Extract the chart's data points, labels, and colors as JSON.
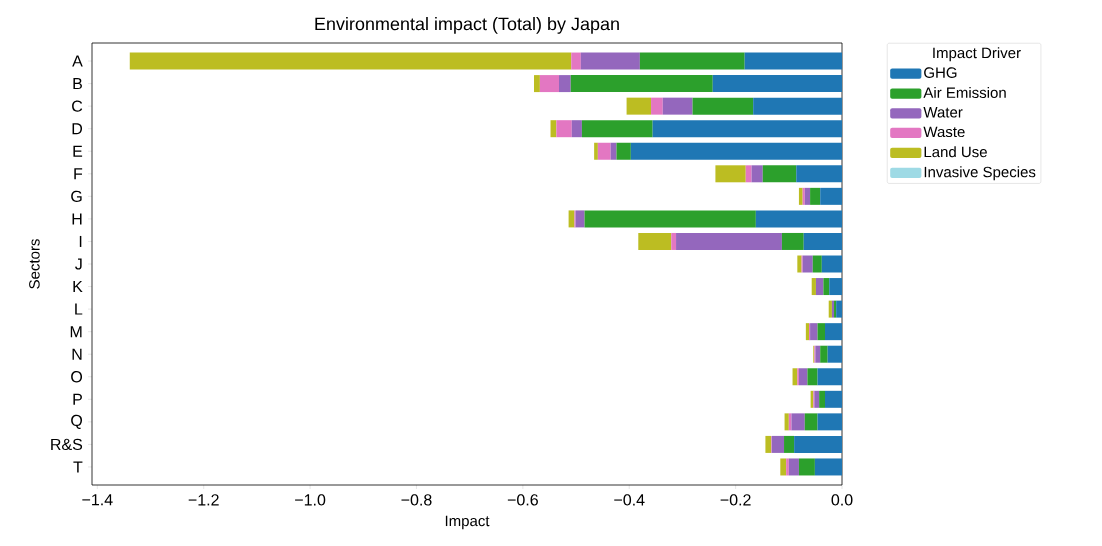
{
  "chart_data": {
    "type": "bar",
    "orientation": "horizontal",
    "stacked": true,
    "title": "Environmental impact (Total) by Japan",
    "xlabel": "Impact",
    "ylabel": "Sectors",
    "legend_title": "Impact Driver",
    "legend": "top right",
    "categories": [
      "A",
      "B",
      "C",
      "D",
      "E",
      "F",
      "G",
      "H",
      "I",
      "J",
      "K",
      "L",
      "M",
      "N",
      "O",
      "P",
      "Q",
      "R&S",
      "T"
    ],
    "xlim": [
      -1.41,
      0
    ],
    "xticks": [
      {
        "value": -1.4,
        "label": "−1.4"
      },
      {
        "value": -1.2,
        "label": "−1.2"
      },
      {
        "value": -1.0,
        "label": "−1.0"
      },
      {
        "value": -0.8,
        "label": "−0.8"
      },
      {
        "value": -0.6,
        "label": "−0.6"
      },
      {
        "value": -0.4,
        "label": "−0.4"
      },
      {
        "value": -0.2,
        "label": "−0.2"
      },
      {
        "value": 0,
        "label": "0.0"
      }
    ],
    "series": [
      {
        "name": "GHG",
        "color": "#1f77b4",
        "values": [
          -0.183,
          -0.243,
          -0.167,
          -0.356,
          -0.397,
          -0.086,
          -0.041,
          -0.162,
          -0.072,
          -0.038,
          -0.024,
          -0.011,
          -0.032,
          -0.027,
          -0.046,
          -0.032,
          -0.046,
          -0.09,
          -0.051
        ]
      },
      {
        "name": "Air Emission",
        "color": "#2ca02c",
        "values": [
          -0.197,
          -0.267,
          -0.114,
          -0.133,
          -0.027,
          -0.063,
          -0.019,
          -0.322,
          -0.041,
          -0.017,
          -0.011,
          -0.004,
          -0.014,
          -0.014,
          -0.019,
          -0.011,
          -0.024,
          -0.019,
          -0.03
        ]
      },
      {
        "name": "Water",
        "color": "#9467bd",
        "values": [
          -0.111,
          -0.022,
          -0.056,
          -0.019,
          -0.011,
          -0.021,
          -0.01,
          -0.017,
          -0.199,
          -0.019,
          -0.014,
          -0.004,
          -0.014,
          -0.009,
          -0.016,
          -0.009,
          -0.025,
          -0.023,
          -0.019
        ]
      },
      {
        "name": "Waste",
        "color": "#e377c2",
        "values": [
          -0.018,
          -0.036,
          -0.022,
          -0.029,
          -0.024,
          -0.011,
          -0.004,
          -0.002,
          -0.009,
          -0.002,
          0,
          0,
          -0.002,
          -0.002,
          -0.003,
          -0.002,
          -0.005,
          -0.001,
          -0.005
        ]
      },
      {
        "name": "Land Use",
        "color": "#bcbd22",
        "values": [
          -0.83,
          -0.011,
          -0.046,
          -0.011,
          -0.007,
          -0.057,
          -0.007,
          -0.011,
          -0.062,
          -0.008,
          -0.008,
          -0.006,
          -0.006,
          -0.002,
          -0.009,
          -0.005,
          -0.008,
          -0.011,
          -0.011
        ]
      },
      {
        "name": "Invasive Species",
        "color": "#9edae5",
        "values": [
          0,
          0,
          0,
          0,
          0,
          0,
          0,
          0,
          0,
          0,
          0,
          0,
          0,
          0,
          0,
          0,
          0,
          0,
          0
        ]
      }
    ]
  }
}
